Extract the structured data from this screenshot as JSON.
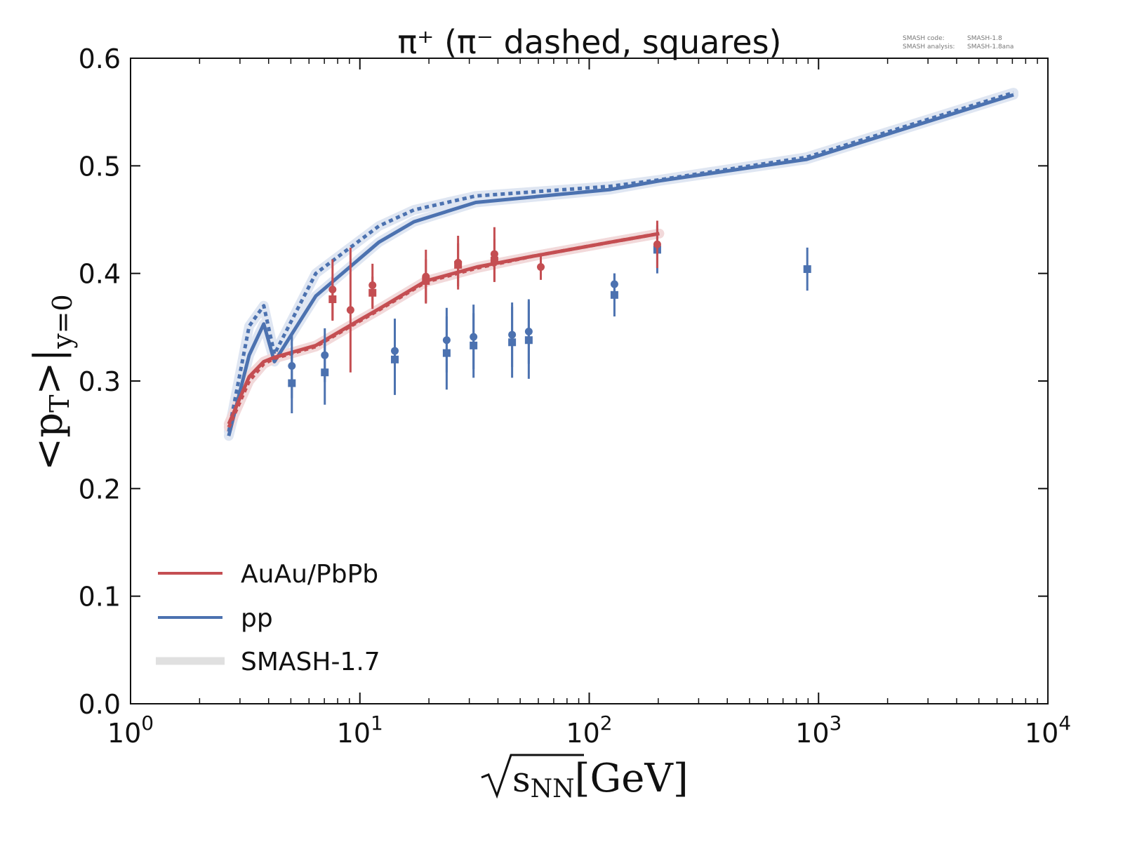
{
  "chart_data": {
    "type": "line",
    "title": "π⁺ (π⁻ dashed, squares)",
    "annotation": {
      "code_label": "SMASH code:",
      "code_value": "SMASH-1.8",
      "analysis_label": "SMASH analysis:",
      "analysis_value": "SMASH-1.8ana"
    },
    "xlabel": {
      "sqrt_arg": "s",
      "sqrt_sub": "NN",
      "unit": "[GeV]"
    },
    "ylabel": {
      "main": "<p",
      "sub_T": "T",
      "close": ">|",
      "sub": "y=0"
    },
    "xscale": "log",
    "xlim": [
      1,
      10000
    ],
    "ylim": [
      0.0,
      0.6
    ],
    "xticks": [
      {
        "value": 1,
        "base": "10",
        "exp": "0"
      },
      {
        "value": 10,
        "base": "10",
        "exp": "1"
      },
      {
        "value": 100,
        "base": "10",
        "exp": "2"
      },
      {
        "value": 1000,
        "base": "10",
        "exp": "3"
      },
      {
        "value": 10000,
        "base": "10",
        "exp": "4"
      }
    ],
    "yticks": [
      {
        "value": 0.0,
        "label": "0.0"
      },
      {
        "value": 0.1,
        "label": "0.1"
      },
      {
        "value": 0.2,
        "label": "0.2"
      },
      {
        "value": 0.3,
        "label": "0.3"
      },
      {
        "value": 0.4,
        "label": "0.4"
      },
      {
        "value": 0.5,
        "label": "0.5"
      },
      {
        "value": 0.6,
        "label": "0.6"
      }
    ],
    "grid": false,
    "legend_position": "bottom-left",
    "legend": [
      {
        "label": "AuAu/PbPb",
        "color": "#c44e52",
        "kind": "line"
      },
      {
        "label": "pp",
        "color": "#4c72b0",
        "kind": "line"
      },
      {
        "label": "SMASH-1.7",
        "color": "#e0e0e0",
        "kind": "band"
      }
    ],
    "series": [
      {
        "name": "pp π+",
        "color": "#4c72b0",
        "style": "solid",
        "x": [
          2.68,
          3.29,
          3.81,
          4.24,
          6.42,
          12.1,
          17.2,
          32.0,
          123.6,
          202,
          887,
          7080
        ],
        "y": [
          0.249,
          0.324,
          0.353,
          0.318,
          0.379,
          0.429,
          0.448,
          0.466,
          0.478,
          0.486,
          0.506,
          0.566
        ]
      },
      {
        "name": "pp π-",
        "color": "#4c72b0",
        "style": "dashed",
        "x": [
          2.68,
          3.29,
          3.81,
          4.24,
          6.42,
          12.1,
          17.2,
          32.0,
          123.6,
          202,
          887,
          7080
        ],
        "y": [
          0.253,
          0.351,
          0.37,
          0.325,
          0.4,
          0.444,
          0.459,
          0.472,
          0.481,
          0.487,
          0.508,
          0.568
        ]
      },
      {
        "name": "AuAu/PbPb π+",
        "color": "#c44e52",
        "style": "solid",
        "x": [
          2.68,
          3.29,
          3.81,
          4.24,
          6.42,
          9.12,
          12.1,
          19.4,
          32.4,
          56.9,
          123.6,
          202
        ],
        "y": [
          0.26,
          0.304,
          0.318,
          0.322,
          0.333,
          0.352,
          0.367,
          0.393,
          0.406,
          0.416,
          0.429,
          0.437
        ]
      },
      {
        "name": "AuAu/PbPb π-",
        "color": "#c44e52",
        "style": "dashed",
        "x": [
          2.68,
          3.29,
          3.81,
          4.24,
          6.42,
          9.12,
          12.1,
          19.4,
          32.4,
          56.9,
          123.6,
          202
        ],
        "y": [
          0.257,
          0.3,
          0.316,
          0.321,
          0.332,
          0.351,
          0.366,
          0.392,
          0.405,
          0.416,
          0.429,
          0.437
        ]
      }
    ],
    "measurements": [
      {
        "group": "pp",
        "marker": "circle",
        "color": "#4c72b0",
        "x": [
          5.05,
          7.03,
          14.2,
          23.9,
          31.3,
          46.1,
          54.5,
          128.8,
          198
        ],
        "y": [
          0.314,
          0.324,
          0.328,
          0.338,
          0.341,
          0.343,
          0.346,
          0.39,
          0.425
        ],
        "err": [
          0.03,
          0.025,
          0.03,
          0.03,
          0.03,
          0.03,
          0.03,
          0.01,
          0.02
        ]
      },
      {
        "group": "pp",
        "marker": "square",
        "color": "#4c72b0",
        "x": [
          5.05,
          7.03,
          14.2,
          23.9,
          31.3,
          46.1,
          54.5,
          128.8,
          198,
          893
        ],
        "y": [
          0.298,
          0.308,
          0.32,
          0.326,
          0.333,
          0.336,
          0.338,
          0.38,
          0.422,
          0.404
        ],
        "err": [
          0.028,
          0.03,
          0.033,
          0.034,
          0.03,
          0.033,
          0.036,
          0.02,
          0.022,
          0.02
        ]
      },
      {
        "group": "AuAu/PbPb",
        "marker": "circle",
        "color": "#c44e52",
        "x": [
          7.6,
          9.1,
          11.35,
          19.4,
          26.8,
          38.6,
          61.5,
          198
        ],
        "y": [
          0.385,
          0.366,
          0.389,
          0.397,
          0.41,
          0.418,
          0.406,
          0.427
        ],
        "err": [
          0.028,
          0.058,
          0.02,
          0.025,
          0.025,
          0.025,
          0.012,
          0.022
        ]
      },
      {
        "group": "AuAu/PbPb",
        "marker": "square",
        "color": "#c44e52",
        "x": [
          7.6,
          11.35,
          19.4,
          26.8,
          38.6
        ],
        "y": [
          0.376,
          0.382,
          0.393,
          0.408,
          0.412
        ],
        "err": [
          0.02,
          0.015,
          0.02,
          0.02,
          0.02
        ]
      }
    ]
  }
}
